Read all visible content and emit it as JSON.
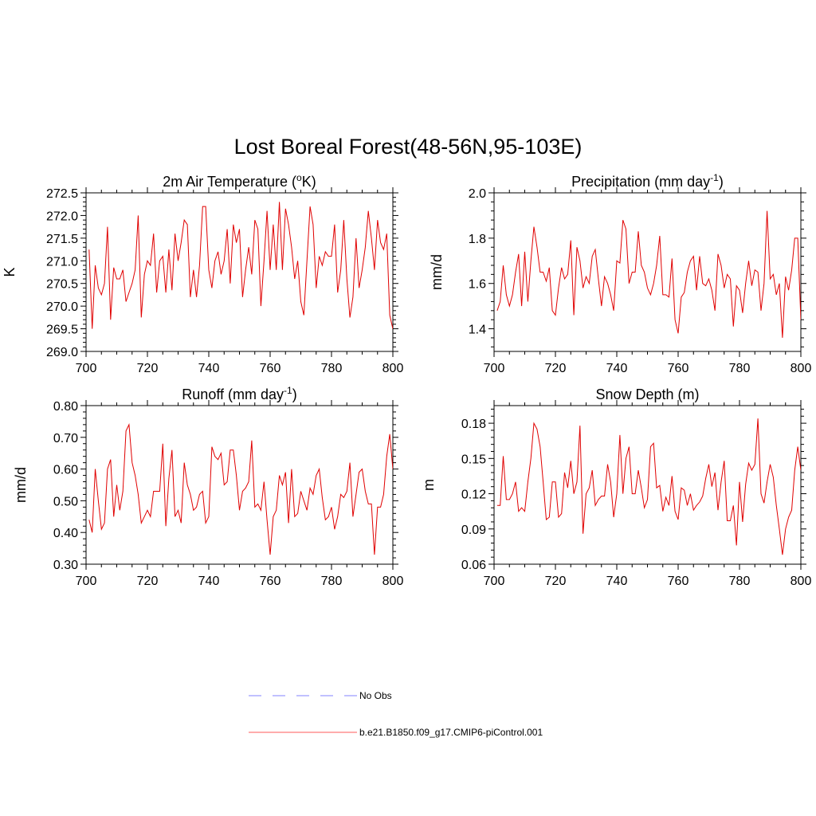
{
  "figure": {
    "title": "Lost Boreal Forest(48-56N,95-103E)"
  },
  "chart_data": [
    {
      "type": "line",
      "title_main": "2m Air Temperature (",
      "title_sup": "o",
      "title_end": "K)",
      "ylabel": "K",
      "xlim": [
        700,
        800
      ],
      "ylim": [
        269.0,
        272.5
      ],
      "x_ticks": [
        "700",
        "720",
        "740",
        "760",
        "780",
        "800"
      ],
      "y_ticks": [
        "269.0",
        "269.5",
        "270.0",
        "270.5",
        "271.0",
        "271.5",
        "272.0",
        "272.5"
      ],
      "y_tick_values": [
        269.0,
        269.5,
        270.0,
        270.5,
        271.0,
        271.5,
        272.0,
        272.5
      ],
      "series": [
        {
          "name": "b.e21.B1850.f09_g17.CMIP6-piControl.001",
          "x_start": 701,
          "values": [
            271.25,
            269.5,
            270.9,
            270.4,
            270.25,
            270.5,
            271.75,
            269.7,
            270.85,
            270.6,
            270.6,
            270.8,
            270.1,
            270.3,
            270.5,
            270.8,
            272.0,
            269.75,
            270.7,
            271.0,
            270.9,
            271.6,
            270.3,
            271.0,
            271.1,
            270.3,
            271.25,
            270.35,
            271.6,
            271.0,
            271.4,
            271.9,
            271.8,
            270.2,
            270.8,
            270.2,
            270.9,
            272.2,
            272.2,
            270.8,
            270.4,
            271.0,
            271.2,
            270.7,
            271.0,
            271.7,
            270.5,
            271.8,
            271.4,
            271.7,
            270.2,
            270.8,
            271.3,
            270.7,
            271.9,
            271.7,
            270.0,
            271.0,
            272.1,
            270.8,
            271.8,
            270.8,
            272.3,
            270.8,
            272.15,
            271.8,
            271.3,
            270.6,
            271.0,
            270.1,
            269.8,
            271.0,
            272.2,
            271.8,
            270.4,
            271.1,
            270.9,
            271.2,
            271.1,
            271.1,
            271.8,
            270.3,
            270.8,
            271.9,
            270.6,
            269.75,
            270.2,
            271.5,
            270.4,
            270.8,
            271.3,
            272.1,
            271.5,
            270.8,
            271.9,
            271.4,
            271.25,
            271.6,
            269.8,
            269.5
          ]
        }
      ]
    },
    {
      "type": "line",
      "title_main": "Precipitation (mm day",
      "title_sup": "-1",
      "title_end": ")",
      "ylabel": "mm/d",
      "xlim": [
        700,
        800
      ],
      "ylim": [
        1.3,
        2.0
      ],
      "x_ticks": [
        "700",
        "720",
        "740",
        "760",
        "780",
        "800"
      ],
      "y_ticks": [
        "1.4",
        "1.6",
        "1.8",
        "2.0"
      ],
      "y_tick_values": [
        1.4,
        1.6,
        1.8,
        2.0
      ],
      "series": [
        {
          "name": "b.e21.B1850.f09_g17.CMIP6-piControl.001",
          "x_start": 701,
          "values": [
            1.48,
            1.52,
            1.68,
            1.55,
            1.5,
            1.55,
            1.65,
            1.73,
            1.5,
            1.74,
            1.52,
            1.7,
            1.85,
            1.76,
            1.65,
            1.65,
            1.61,
            1.67,
            1.48,
            1.46,
            1.58,
            1.67,
            1.62,
            1.64,
            1.79,
            1.46,
            1.76,
            1.7,
            1.58,
            1.63,
            1.6,
            1.72,
            1.75,
            1.62,
            1.5,
            1.63,
            1.6,
            1.55,
            1.48,
            1.7,
            1.69,
            1.88,
            1.84,
            1.6,
            1.65,
            1.65,
            1.83,
            1.68,
            1.65,
            1.58,
            1.55,
            1.6,
            1.68,
            1.81,
            1.55,
            1.55,
            1.54,
            1.71,
            1.44,
            1.38,
            1.54,
            1.56,
            1.65,
            1.7,
            1.72,
            1.57,
            1.72,
            1.6,
            1.59,
            1.62,
            1.57,
            1.48,
            1.73,
            1.68,
            1.58,
            1.64,
            1.62,
            1.41,
            1.59,
            1.57,
            1.47,
            1.6,
            1.7,
            1.59,
            1.66,
            1.65,
            1.48,
            1.6,
            1.92,
            1.62,
            1.64,
            1.55,
            1.6,
            1.36,
            1.63,
            1.57,
            1.66,
            1.8,
            1.8,
            1.44
          ]
        }
      ]
    },
    {
      "type": "line",
      "title_main": "Runoff (mm day",
      "title_sup": "-1",
      "title_end": ")",
      "ylabel": "mm/d",
      "xlim": [
        700,
        800
      ],
      "ylim": [
        0.3,
        0.8
      ],
      "x_ticks": [
        "700",
        "720",
        "740",
        "760",
        "780",
        "800"
      ],
      "y_ticks": [
        "0.30",
        "0.40",
        "0.50",
        "0.60",
        "0.70",
        "0.80"
      ],
      "y_tick_values": [
        0.3,
        0.4,
        0.5,
        0.6,
        0.7,
        0.8
      ],
      "series": [
        {
          "name": "b.e21.B1850.f09_g17.CMIP6-piControl.001",
          "x_start": 701,
          "values": [
            0.44,
            0.4,
            0.6,
            0.5,
            0.41,
            0.43,
            0.6,
            0.63,
            0.45,
            0.55,
            0.47,
            0.53,
            0.72,
            0.74,
            0.62,
            0.58,
            0.52,
            0.43,
            0.45,
            0.47,
            0.45,
            0.53,
            0.53,
            0.53,
            0.68,
            0.42,
            0.57,
            0.66,
            0.45,
            0.47,
            0.43,
            0.62,
            0.55,
            0.52,
            0.47,
            0.48,
            0.52,
            0.53,
            0.43,
            0.45,
            0.67,
            0.64,
            0.63,
            0.65,
            0.55,
            0.56,
            0.66,
            0.66,
            0.58,
            0.47,
            0.53,
            0.54,
            0.56,
            0.69,
            0.48,
            0.49,
            0.47,
            0.56,
            0.44,
            0.33,
            0.45,
            0.47,
            0.58,
            0.55,
            0.59,
            0.43,
            0.6,
            0.45,
            0.46,
            0.53,
            0.5,
            0.47,
            0.54,
            0.52,
            0.58,
            0.6,
            0.51,
            0.44,
            0.45,
            0.48,
            0.41,
            0.45,
            0.52,
            0.51,
            0.53,
            0.62,
            0.45,
            0.52,
            0.59,
            0.6,
            0.53,
            0.49,
            0.49,
            0.33,
            0.48,
            0.48,
            0.52,
            0.64,
            0.71,
            0.6
          ]
        }
      ]
    },
    {
      "type": "line",
      "title_main": "Snow Depth (m)",
      "title_sup": "",
      "title_end": "",
      "ylabel": "m",
      "xlim": [
        700,
        800
      ],
      "ylim": [
        0.06,
        0.195
      ],
      "x_ticks": [
        "700",
        "720",
        "740",
        "760",
        "780",
        "800"
      ],
      "y_ticks": [
        "0.06",
        "0.09",
        "0.12",
        "0.15",
        "0.18"
      ],
      "y_tick_values": [
        0.06,
        0.09,
        0.12,
        0.15,
        0.18
      ],
      "series": [
        {
          "name": "b.e21.B1850.f09_g17.CMIP6-piControl.001",
          "x_start": 701,
          "values": [
            0.11,
            0.11,
            0.152,
            0.115,
            0.115,
            0.12,
            0.13,
            0.105,
            0.108,
            0.105,
            0.13,
            0.15,
            0.18,
            0.175,
            0.16,
            0.13,
            0.098,
            0.1,
            0.13,
            0.13,
            0.1,
            0.103,
            0.138,
            0.125,
            0.148,
            0.12,
            0.13,
            0.178,
            0.086,
            0.12,
            0.125,
            0.14,
            0.11,
            0.115,
            0.118,
            0.118,
            0.145,
            0.13,
            0.1,
            0.12,
            0.17,
            0.12,
            0.15,
            0.16,
            0.12,
            0.12,
            0.14,
            0.125,
            0.108,
            0.115,
            0.16,
            0.163,
            0.125,
            0.127,
            0.105,
            0.117,
            0.11,
            0.135,
            0.105,
            0.098,
            0.125,
            0.123,
            0.11,
            0.12,
            0.106,
            0.11,
            0.113,
            0.118,
            0.133,
            0.145,
            0.126,
            0.138,
            0.106,
            0.13,
            0.148,
            0.097,
            0.097,
            0.11,
            0.076,
            0.13,
            0.096,
            0.128,
            0.146,
            0.14,
            0.145,
            0.184,
            0.12,
            0.112,
            0.13,
            0.145,
            0.134,
            0.11,
            0.09,
            0.068,
            0.09,
            0.1,
            0.106,
            0.14,
            0.16,
            0.14
          ]
        }
      ]
    }
  ],
  "legend": [
    {
      "label": "No Obs",
      "color": "#9c9cff",
      "style": "dashed"
    },
    {
      "label": "b.e21.B1850.f09_g17.CMIP6-piControl.001",
      "color": "#ff7a7a",
      "style": "solid"
    }
  ]
}
